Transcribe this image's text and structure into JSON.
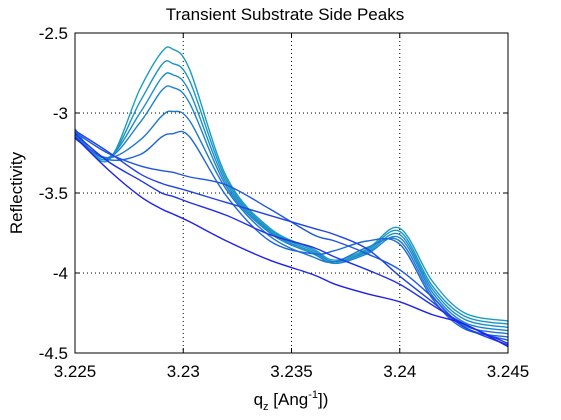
{
  "chart_data": {
    "type": "line",
    "title": "Transient Substrate Side Peaks",
    "ylabel": "Reflectivity",
    "xlabel": {
      "base": "q",
      "sub": "z",
      "pre": " [Ang",
      "sup": "-1",
      "post": "])"
    },
    "xlim": [
      3.225,
      3.245
    ],
    "ylim": [
      -4.5,
      -2.5
    ],
    "xticks": [
      3.225,
      3.23,
      3.235,
      3.24,
      3.245
    ],
    "xtick_labels": [
      "3.225",
      "3.23",
      "3.235",
      "3.24",
      "3.245"
    ],
    "yticks": [
      -2.5,
      -3,
      -3.5,
      -4,
      -4.5
    ],
    "ytick_labels": [
      "-2.5",
      "-3",
      "-3.5",
      "-4",
      "-4.5"
    ],
    "grid": true,
    "x": [
      3.225,
      3.2265,
      3.228,
      3.229,
      3.2295,
      3.2303,
      3.232,
      3.234,
      3.236,
      3.237,
      3.2385,
      3.24,
      3.2415,
      3.243,
      3.245
    ],
    "series": [
      {
        "color": "#1a9cc0",
        "values": [
          -3.1,
          -3.3,
          -2.85,
          -2.62,
          -2.6,
          -2.73,
          -3.4,
          -3.72,
          -3.85,
          -3.92,
          -3.85,
          -3.72,
          -4.05,
          -4.25,
          -4.3
        ]
      },
      {
        "color": "#1a96c4",
        "values": [
          -3.12,
          -3.29,
          -2.93,
          -2.7,
          -2.69,
          -2.8,
          -3.42,
          -3.73,
          -3.86,
          -3.93,
          -3.86,
          -3.74,
          -4.08,
          -4.27,
          -4.32
        ]
      },
      {
        "color": "#1a8ec8",
        "values": [
          -3.13,
          -3.28,
          -3.0,
          -2.78,
          -2.76,
          -2.87,
          -3.44,
          -3.74,
          -3.87,
          -3.93,
          -3.87,
          -3.76,
          -4.1,
          -4.29,
          -4.34
        ]
      },
      {
        "color": "#1b84cc",
        "values": [
          -3.14,
          -3.28,
          -3.06,
          -2.86,
          -2.84,
          -2.94,
          -3.46,
          -3.75,
          -3.88,
          -3.94,
          -3.88,
          -3.78,
          -4.12,
          -4.31,
          -4.36
        ]
      },
      {
        "color": "#1c78d2",
        "values": [
          -3.15,
          -3.28,
          -3.17,
          -3.02,
          -2.99,
          -3.05,
          -3.48,
          -3.77,
          -3.9,
          -3.93,
          -3.84,
          -3.8,
          -4.14,
          -4.33,
          -4.38
        ]
      },
      {
        "color": "#1d68d8",
        "values": [
          -3.16,
          -3.29,
          -3.26,
          -3.15,
          -3.13,
          -3.15,
          -3.52,
          -3.8,
          -3.88,
          -3.86,
          -3.8,
          -3.82,
          -4.16,
          -4.35,
          -4.4
        ]
      },
      {
        "color": "#1e56de",
        "values": [
          -3.12,
          -3.25,
          -3.33,
          -3.36,
          -3.37,
          -3.4,
          -3.45,
          -3.6,
          -3.76,
          -3.8,
          -3.88,
          -3.98,
          -4.15,
          -4.34,
          -4.42
        ]
      },
      {
        "color": "#1f44e4",
        "values": [
          -3.11,
          -3.24,
          -3.38,
          -3.44,
          -3.46,
          -3.49,
          -3.56,
          -3.64,
          -3.72,
          -3.76,
          -3.85,
          -4.02,
          -4.18,
          -4.34,
          -4.45
        ]
      },
      {
        "color": "#2030e8",
        "values": [
          -3.13,
          -3.3,
          -3.42,
          -3.5,
          -3.52,
          -3.56,
          -3.64,
          -3.76,
          -3.84,
          -3.9,
          -3.98,
          -4.07,
          -4.2,
          -4.32,
          -4.44
        ]
      },
      {
        "color": "#2020ec",
        "values": [
          -3.15,
          -3.35,
          -3.52,
          -3.6,
          -3.63,
          -3.68,
          -3.8,
          -3.92,
          -4.01,
          -4.07,
          -4.13,
          -4.18,
          -4.26,
          -4.32,
          -4.46
        ]
      }
    ]
  }
}
